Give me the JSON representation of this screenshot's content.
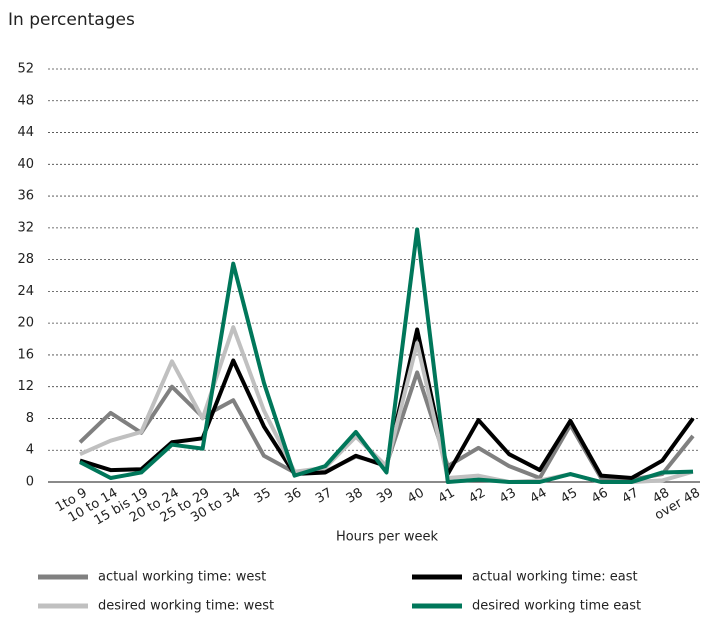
{
  "chart_data": {
    "type": "line",
    "subtitle": "In percentages",
    "x_label": "Hours per week",
    "categories": [
      "1to 9",
      "10 to 14",
      "15 bis 19",
      "20 to 24",
      "25 to 29",
      "30 to 34",
      "35",
      "36",
      "37",
      "38",
      "39",
      "40",
      "41",
      "42",
      "43",
      "44",
      "45",
      "46",
      "47",
      "48",
      "over 48"
    ],
    "series": [
      {
        "name": "actual working time: west",
        "color": "#808080",
        "values": [
          5,
          8.7,
          6.2,
          12,
          8.2,
          10.3,
          3.3,
          1.2,
          1.3,
          3.2,
          2.2,
          13.8,
          2,
          4.3,
          2,
          0.5,
          7.2,
          0.5,
          0.3,
          1,
          5.8
        ]
      },
      {
        "name": "actual working time: east",
        "color": "#000000",
        "values": [
          2.7,
          1.5,
          1.6,
          5,
          5.5,
          15.3,
          7,
          1,
          1.2,
          3.3,
          2,
          19.2,
          1,
          7.8,
          3.5,
          1.5,
          7.7,
          0.8,
          0.5,
          2.7,
          8
        ]
      },
      {
        "name": "desired working time: west",
        "color": "#c0c0c0",
        "values": [
          3.5,
          5.2,
          6.3,
          15.2,
          8,
          19.5,
          9,
          1.3,
          1.8,
          5.7,
          2,
          17.5,
          0.5,
          0.8,
          0,
          0.2,
          1,
          0,
          0,
          0.2,
          1.3
        ]
      },
      {
        "name": "desired working time east",
        "color": "#00775a",
        "values": [
          2.5,
          0.5,
          1.2,
          4.7,
          4.2,
          27.5,
          12.5,
          0.8,
          2,
          6.3,
          1.2,
          31.8,
          0,
          0.3,
          0,
          0,
          1,
          0,
          0,
          1.2,
          1.3
        ]
      }
    ],
    "ylim": [
      0,
      52
    ],
    "yticks": [
      0,
      4,
      8,
      12,
      16,
      20,
      24,
      28,
      32,
      36,
      40,
      44,
      48,
      52
    ],
    "grid": true
  }
}
